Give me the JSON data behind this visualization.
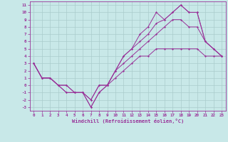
{
  "bg_color": "#c8e8e8",
  "line_color": "#993399",
  "grid_color": "#aacccc",
  "xlabel": "Windchill (Refroidissement éolien,°C)",
  "xlim": [
    -0.5,
    23.5
  ],
  "ylim": [
    -3.5,
    11.5
  ],
  "xticks": [
    0,
    1,
    2,
    3,
    4,
    5,
    6,
    7,
    8,
    9,
    10,
    11,
    12,
    13,
    14,
    15,
    16,
    17,
    18,
    19,
    20,
    21,
    22,
    23
  ],
  "yticks": [
    -3,
    -2,
    -1,
    0,
    1,
    2,
    3,
    4,
    5,
    6,
    7,
    8,
    9,
    10,
    11
  ],
  "line1": {
    "x": [
      0,
      1,
      2,
      3,
      4,
      5,
      6,
      7,
      8,
      9,
      10,
      11,
      12,
      13,
      14,
      15,
      16,
      17,
      18,
      19,
      20,
      21,
      22,
      23
    ],
    "y": [
      3,
      1,
      1,
      0,
      0,
      -1,
      -1,
      -3,
      -1,
      0,
      1,
      2,
      3,
      4,
      4,
      5,
      5,
      5,
      5,
      5,
      5,
      4,
      4,
      4
    ]
  },
  "line2": {
    "x": [
      0,
      1,
      2,
      3,
      4,
      5,
      6,
      7,
      8,
      9,
      10,
      11,
      12,
      13,
      14,
      15,
      16,
      17,
      18,
      19,
      20,
      21,
      22,
      23
    ],
    "y": [
      3,
      1,
      1,
      0,
      -1,
      -1,
      -1,
      -2,
      0,
      0,
      2,
      3,
      4,
      5,
      6,
      7,
      8,
      9,
      9,
      8,
      8,
      6,
      5,
      4
    ]
  },
  "line3": {
    "x": [
      0,
      1,
      2,
      3,
      4,
      5,
      6,
      7,
      8,
      9,
      10,
      11,
      12,
      13,
      14,
      15,
      16,
      17,
      18,
      19,
      20,
      21,
      22,
      23
    ],
    "y": [
      3,
      1,
      1,
      0,
      0,
      -1,
      -1,
      -3,
      -1,
      0,
      2,
      4,
      5,
      6,
      7,
      8.5,
      9,
      10,
      11,
      10,
      10,
      6,
      5,
      4
    ]
  },
  "line4": {
    "x": [
      0,
      1,
      2,
      3,
      4,
      5,
      6,
      7,
      8,
      9,
      10,
      11,
      12,
      13,
      14,
      15,
      16,
      17,
      18,
      19,
      20,
      21,
      22,
      23
    ],
    "y": [
      3,
      1,
      1,
      0,
      -1,
      -1,
      -1,
      -2,
      0,
      0,
      2,
      4,
      5,
      7,
      8,
      10,
      9,
      10,
      11,
      10,
      10,
      6,
      5,
      4
    ]
  }
}
